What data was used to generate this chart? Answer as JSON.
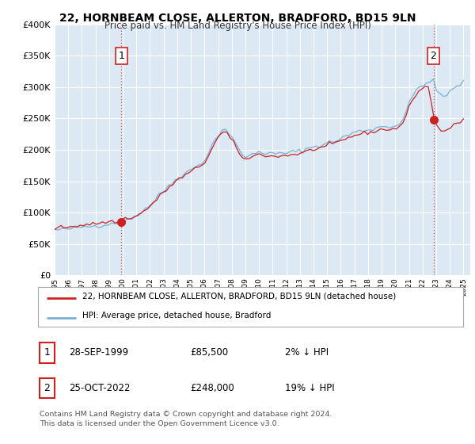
{
  "title": "22, HORNBEAM CLOSE, ALLERTON, BRADFORD, BD15 9LN",
  "subtitle": "Price paid vs. HM Land Registry's House Price Index (HPI)",
  "ylim": [
    0,
    400000
  ],
  "xlim_start": 1995.0,
  "xlim_end": 2025.5,
  "chart_bg": "#dce9f5",
  "hpi_color": "#7aafd4",
  "price_color": "#cc2222",
  "point_color": "#cc2222",
  "sale1_year": 1999.9,
  "sale1_price": 85500,
  "sale2_year": 2022.8,
  "sale2_price": 248000,
  "legend_label1": "22, HORNBEAM CLOSE, ALLERTON, BRADFORD, BD15 9LN (detached house)",
  "legend_label2": "HPI: Average price, detached house, Bradford",
  "table_row1_num": "1",
  "table_row1_date": "28-SEP-1999",
  "table_row1_price": "£85,500",
  "table_row1_hpi": "2% ↓ HPI",
  "table_row2_num": "2",
  "table_row2_date": "25-OCT-2022",
  "table_row2_price": "£248,000",
  "table_row2_hpi": "19% ↓ HPI",
  "footnote": "Contains HM Land Registry data © Crown copyright and database right 2024.\nThis data is licensed under the Open Government Licence v3.0.",
  "background_color": "#ffffff",
  "grid_color": "#ffffff",
  "vline_color": "#cc2222",
  "box_edge_color": "#cc2222"
}
